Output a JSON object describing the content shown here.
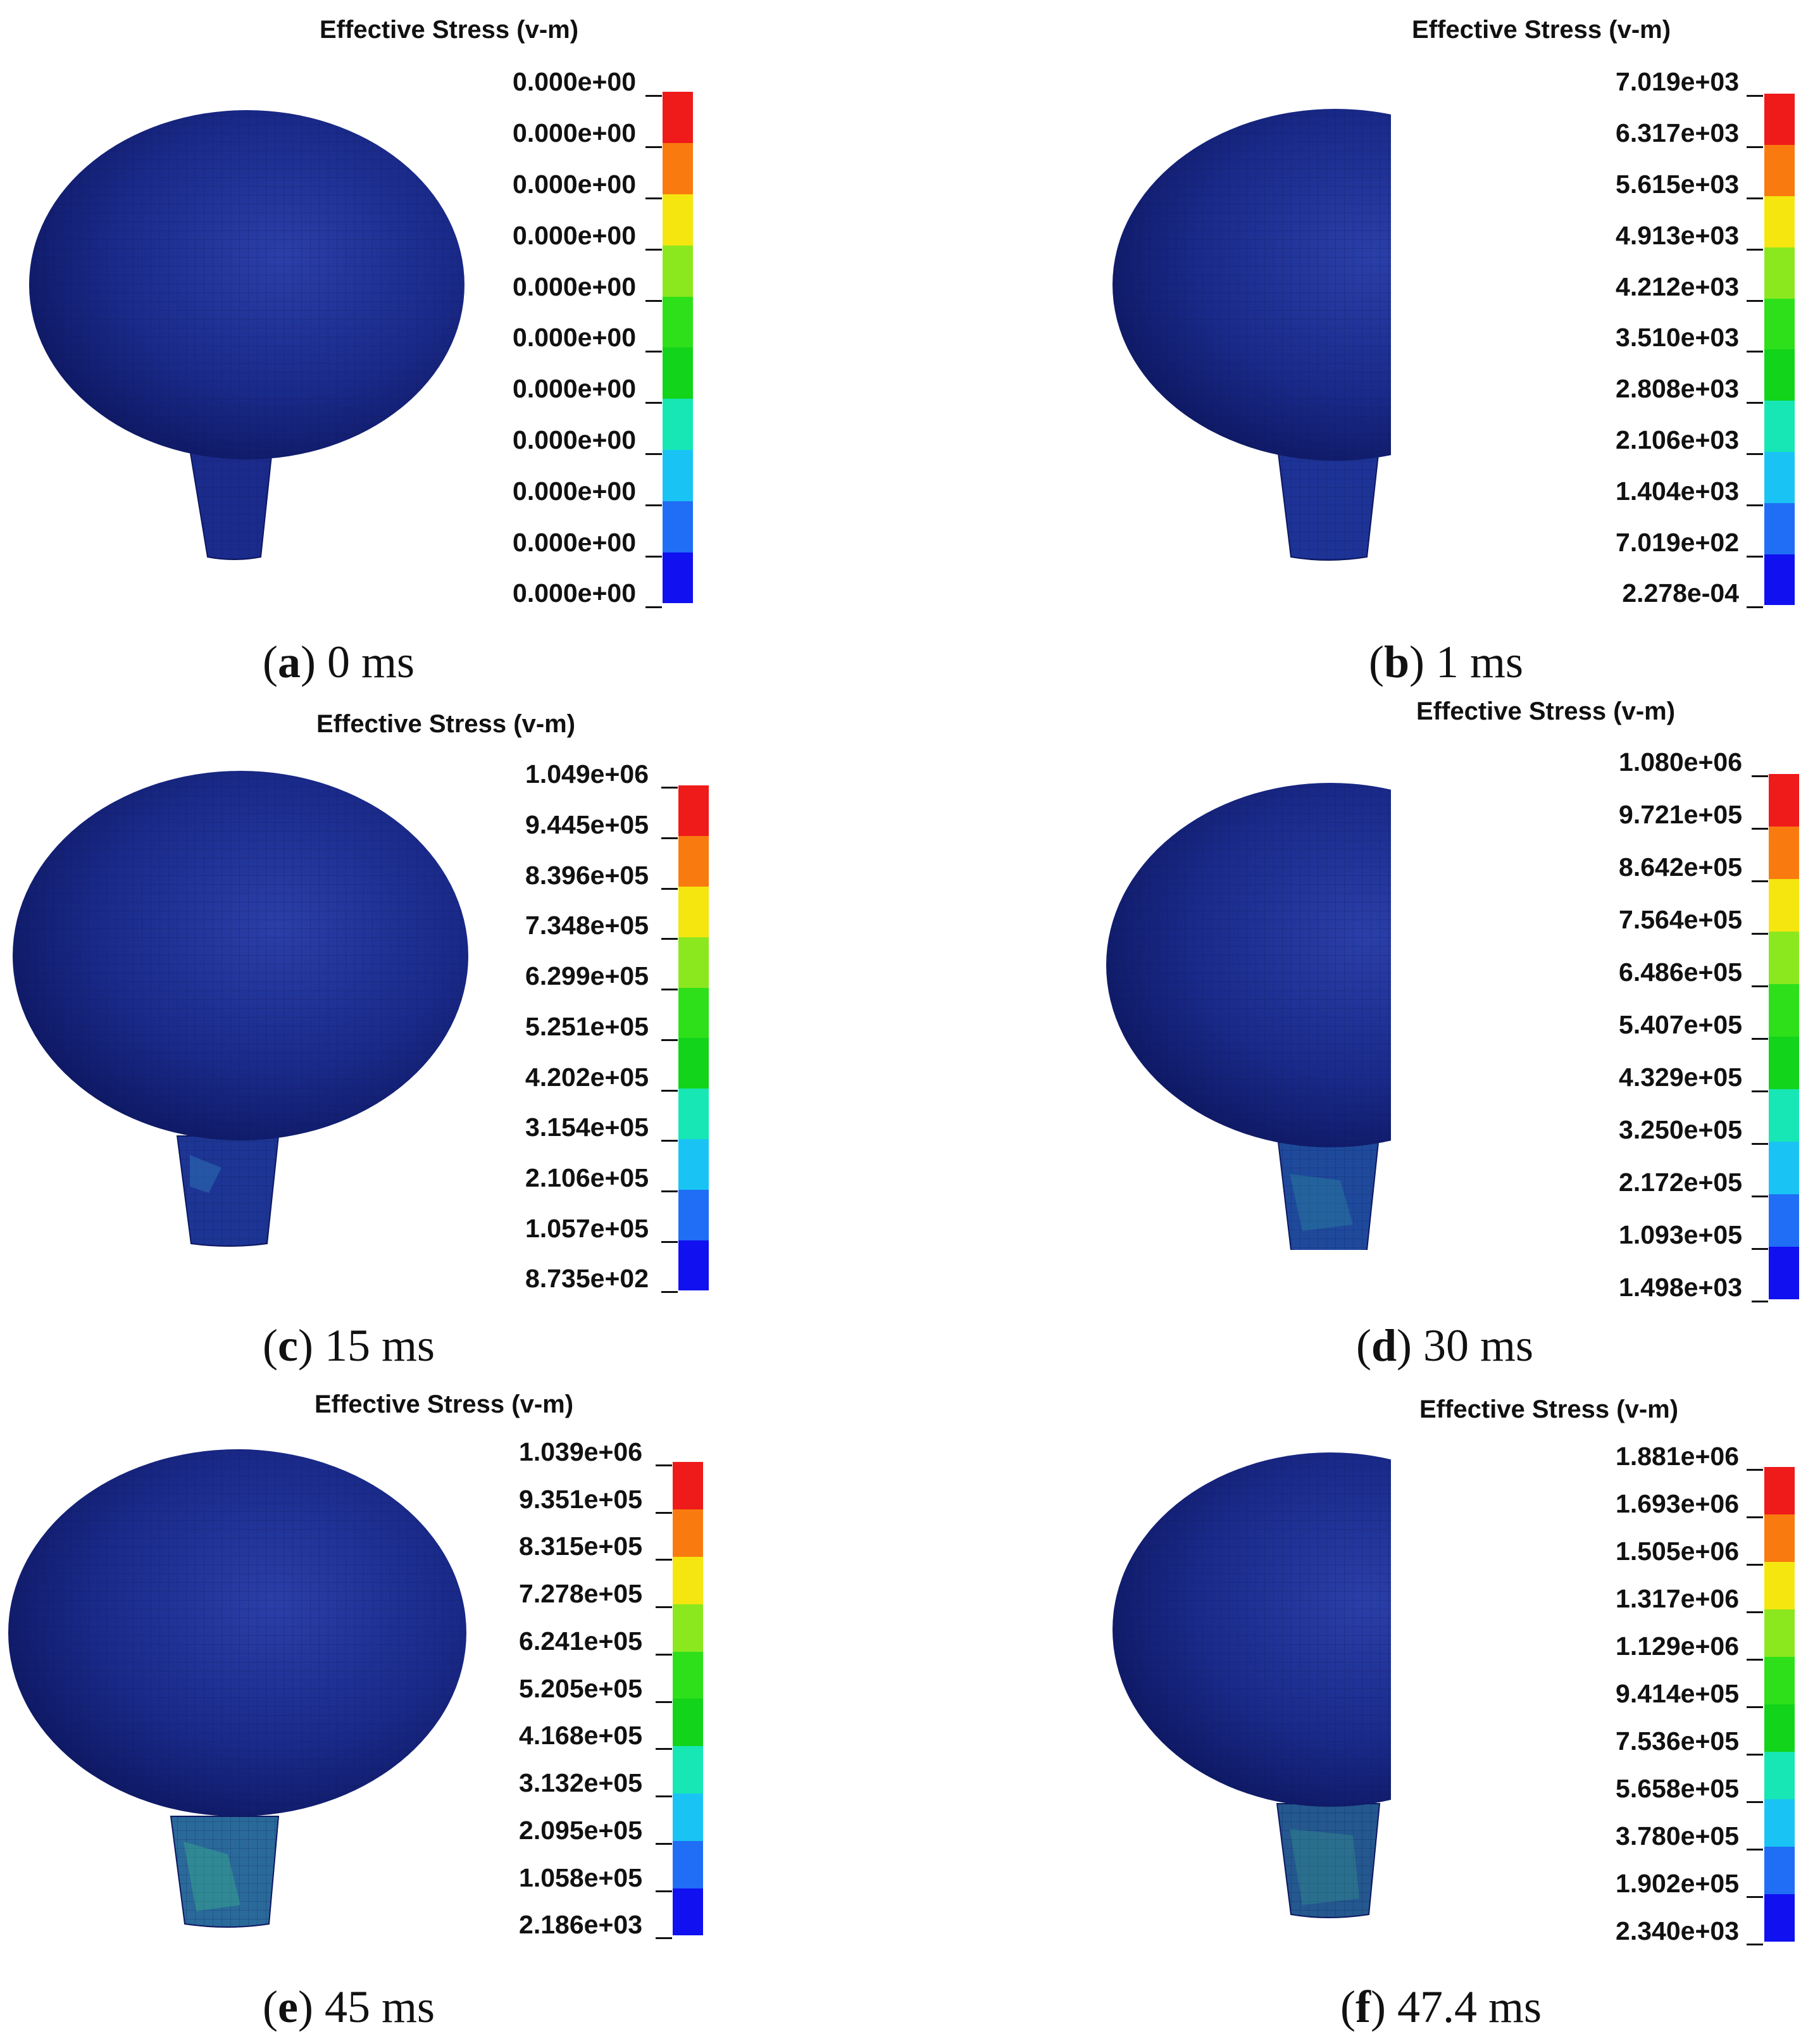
{
  "legend_colors": [
    "#1010f0",
    "#1f6ef5",
    "#19c4f5",
    "#16e7b5",
    "#12d41a",
    "#2ee01a",
    "#8be81f",
    "#f5e60f",
    "#f9c20d",
    "#f97b0f",
    "#ef1a1a"
  ],
  "panels": [
    {
      "id": "a",
      "title": "Effective Stress (v-m)",
      "labels": [
        "0.000e+00",
        "0.000e+00",
        "0.000e+00",
        "0.000e+00",
        "0.000e+00",
        "0.000e+00",
        "0.000e+00",
        "0.000e+00",
        "0.000e+00",
        "0.000e+00",
        "0.000e+00"
      ],
      "caption_letter": "a",
      "caption_time": "0 ms"
    },
    {
      "id": "b",
      "title": "Effective Stress (v-m)",
      "labels": [
        "7.019e+03",
        "6.317e+03",
        "5.615e+03",
        "4.913e+03",
        "4.212e+03",
        "3.510e+03",
        "2.808e+03",
        "2.106e+03",
        "1.404e+03",
        "7.019e+02",
        "2.278e-04"
      ],
      "caption_letter": "b",
      "caption_time": "1 ms"
    },
    {
      "id": "c",
      "title": "Effective Stress (v-m)",
      "labels": [
        "1.049e+06",
        "9.445e+05",
        "8.396e+05",
        "7.348e+05",
        "6.299e+05",
        "5.251e+05",
        "4.202e+05",
        "3.154e+05",
        "2.106e+05",
        "1.057e+05",
        "8.735e+02"
      ],
      "caption_letter": "c",
      "caption_time": "15 ms"
    },
    {
      "id": "d",
      "title": "Effective Stress (v-m)",
      "labels": [
        "1.080e+06",
        "9.721e+05",
        "8.642e+05",
        "7.564e+05",
        "6.486e+05",
        "5.407e+05",
        "4.329e+05",
        "3.250e+05",
        "2.172e+05",
        "1.093e+05",
        "1.498e+03"
      ],
      "caption_letter": "d",
      "caption_time": "30 ms"
    },
    {
      "id": "e",
      "title": "Effective Stress (v-m)",
      "labels": [
        "1.039e+06",
        "9.351e+05",
        "8.315e+05",
        "7.278e+05",
        "6.241e+05",
        "5.205e+05",
        "4.168e+05",
        "3.132e+05",
        "2.095e+05",
        "1.058e+05",
        "2.186e+03"
      ],
      "caption_letter": "e",
      "caption_time": "45 ms"
    },
    {
      "id": "f",
      "title": "Effective Stress (v-m)",
      "labels": [
        "1.881e+06",
        "1.693e+06",
        "1.505e+06",
        "1.317e+06",
        "1.129e+06",
        "9.414e+05",
        "7.536e+05",
        "5.658e+05",
        "3.780e+05",
        "1.902e+05",
        "2.340e+03"
      ],
      "caption_letter": "f",
      "caption_time": "47.4 ms"
    }
  ]
}
